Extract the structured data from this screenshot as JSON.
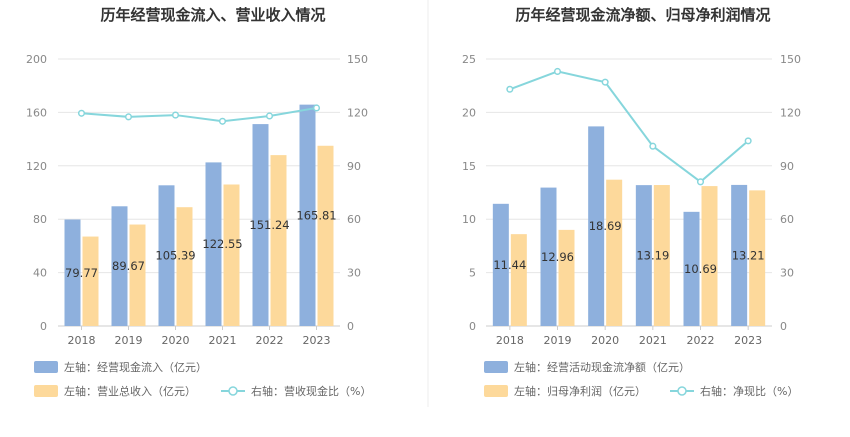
{
  "chart_data": [
    {
      "type": "bar",
      "title": "历年经营现金流入、营业收入情况",
      "categories": [
        "2018",
        "2019",
        "2020",
        "2021",
        "2022",
        "2023"
      ],
      "left_axis": {
        "ticks": [
          "0",
          "40",
          "80",
          "120",
          "160",
          "200"
        ],
        "range": [
          0,
          200
        ]
      },
      "right_axis": {
        "ticks": [
          "0",
          "30",
          "60",
          "90",
          "120",
          "150"
        ],
        "range": [
          0,
          150
        ]
      },
      "series": [
        {
          "name": "左轴：经营现金流入（亿元）",
          "type": "bar",
          "axis": "left",
          "color": "#8eb0dd",
          "values": [
            79.77,
            89.67,
            105.39,
            122.55,
            151.24,
            165.81
          ],
          "labels": [
            "79.77",
            "89.67",
            "105.39",
            "122.55",
            "151.24",
            "165.81"
          ]
        },
        {
          "name": "左轴：营业总收入（亿元）",
          "type": "bar",
          "axis": "left",
          "color": "#fdd99b",
          "values": [
            67,
            76,
            89,
            106,
            128,
            135
          ]
        },
        {
          "name": "右轴：营收现金比（%）",
          "type": "line",
          "axis": "right",
          "color": "#86d6dc",
          "values": [
            119.5,
            117.5,
            118.5,
            115,
            118,
            122.5
          ]
        }
      ]
    },
    {
      "type": "bar",
      "title": "历年经营现金流净额、归母净利润情况",
      "categories": [
        "2018",
        "2019",
        "2020",
        "2021",
        "2022",
        "2023"
      ],
      "left_axis": {
        "ticks": [
          "0",
          "5",
          "10",
          "15",
          "20",
          "25"
        ],
        "range": [
          0,
          25
        ]
      },
      "right_axis": {
        "ticks": [
          "0",
          "30",
          "60",
          "90",
          "120",
          "150"
        ],
        "range": [
          0,
          150
        ]
      },
      "series": [
        {
          "name": "左轴：经营活动现金流净额（亿元）",
          "type": "bar",
          "axis": "left",
          "color": "#8eb0dd",
          "values": [
            11.44,
            12.96,
            18.69,
            13.19,
            10.69,
            13.21
          ],
          "labels": [
            "11.44",
            "12.96",
            "18.69",
            "13.19",
            "10.69",
            "13.21"
          ]
        },
        {
          "name": "左轴：归母净利润（亿元）",
          "type": "bar",
          "axis": "left",
          "color": "#fdd99b",
          "values": [
            8.6,
            9.0,
            13.7,
            13.2,
            13.1,
            12.7
          ]
        },
        {
          "name": "右轴：净现比（%）",
          "type": "line",
          "axis": "right",
          "color": "#86d6dc",
          "values": [
            133,
            143,
            137,
            101,
            81,
            104
          ]
        }
      ]
    }
  ]
}
